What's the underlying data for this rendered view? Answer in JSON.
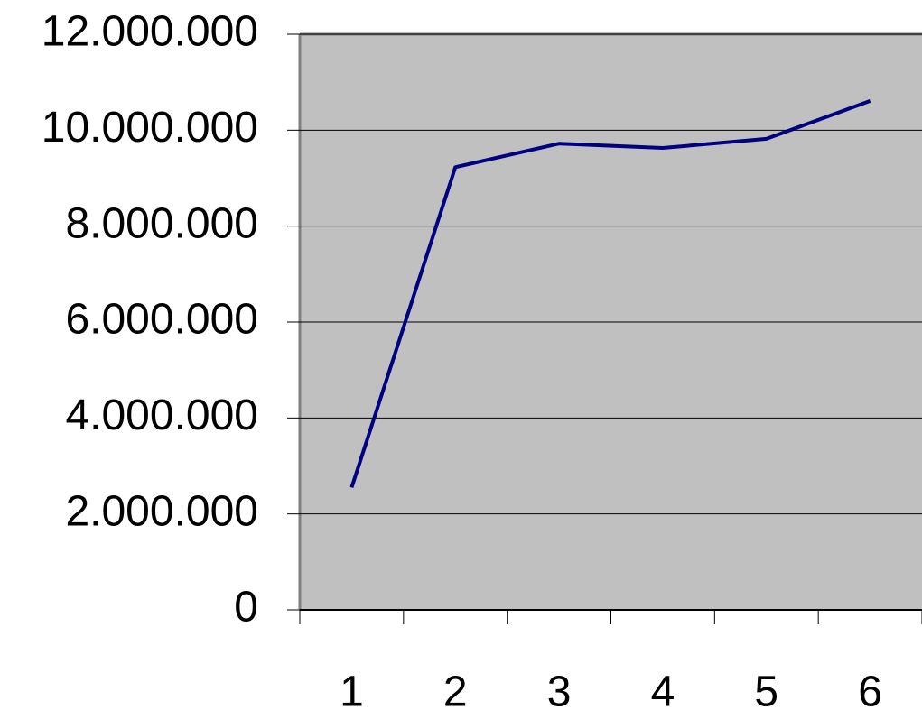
{
  "chart_data": {
    "type": "line",
    "categories": [
      "1",
      "2",
      "3",
      "4",
      "5",
      "6"
    ],
    "values": [
      2550000,
      9230000,
      9720000,
      9630000,
      9820000,
      10610000
    ],
    "color": "#000080",
    "ylim": [
      0,
      12000000
    ],
    "yticks": [
      0,
      {
        "value": 2000000,
        "label": "2.000.000"
      },
      {
        "value": 4000000,
        "label": "4.000.000"
      },
      {
        "value": 6000000,
        "label": "6.000.000"
      },
      {
        "value": 8000000,
        "label": "8.000.000"
      },
      {
        "value": 10000000,
        "label": "10.000.000"
      },
      {
        "value": 12000000,
        "label": "12.000.000"
      }
    ],
    "grid": true
  }
}
